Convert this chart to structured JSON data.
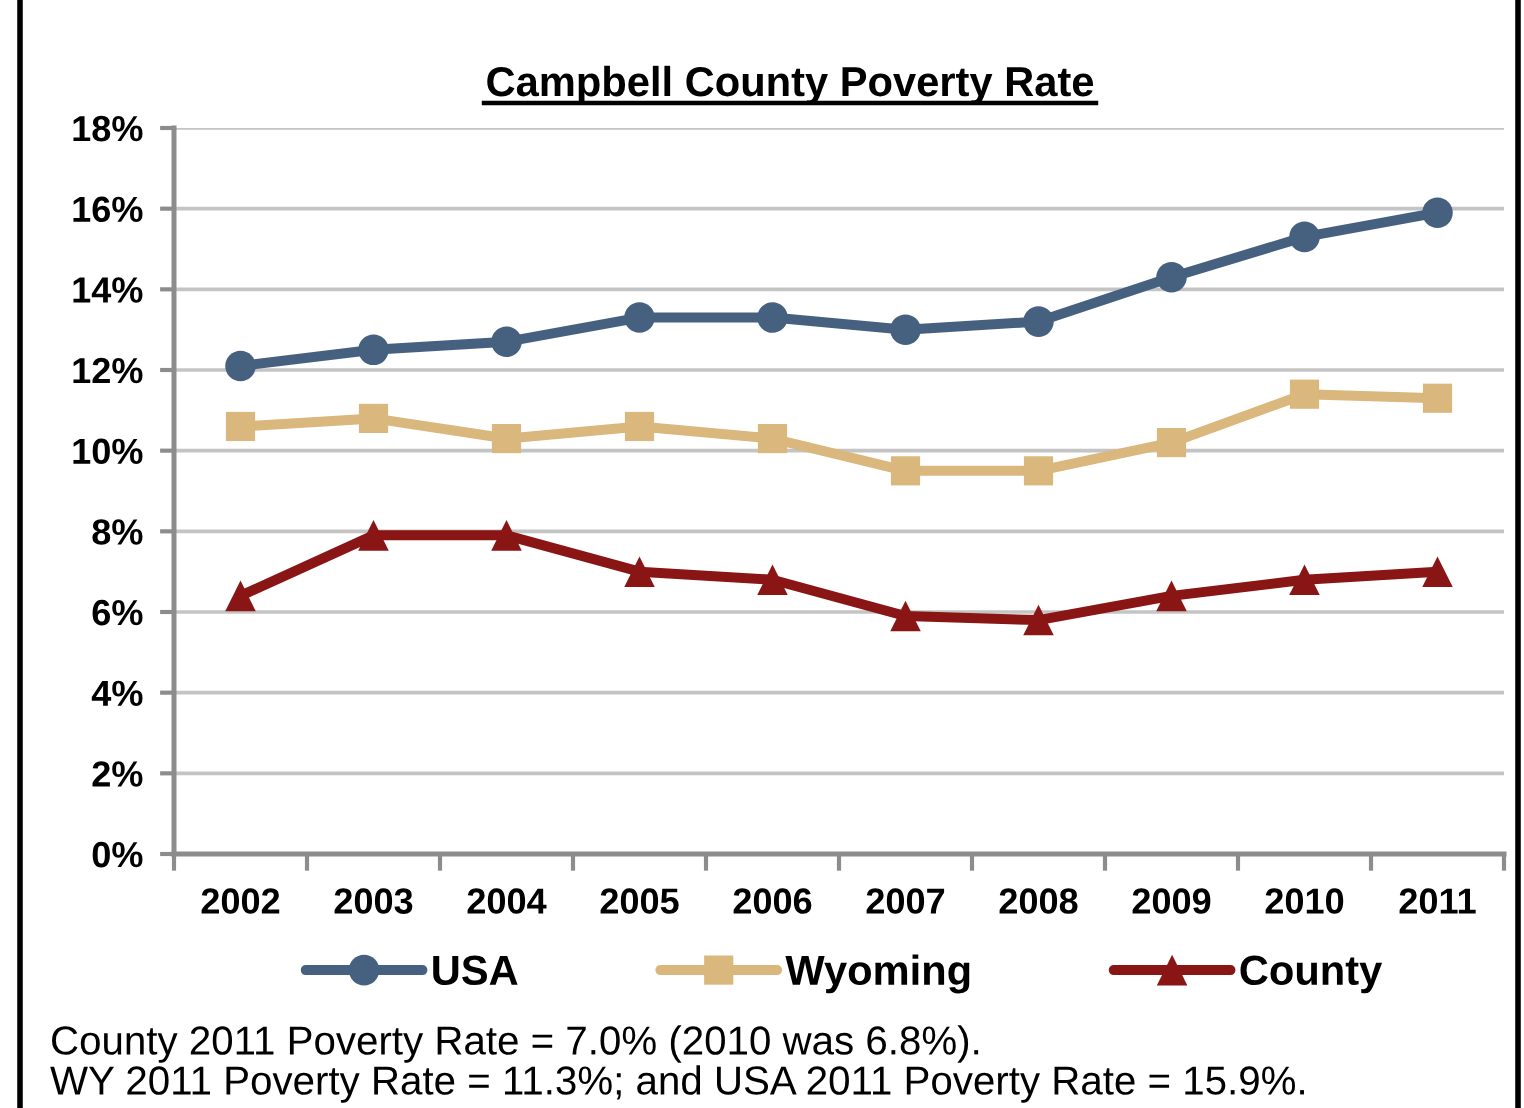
{
  "chart_data": {
    "type": "line",
    "title": "Campbell County Poverty Rate",
    "categories": [
      "2002",
      "2003",
      "2004",
      "2005",
      "2006",
      "2007",
      "2008",
      "2009",
      "2010",
      "2011"
    ],
    "series": [
      {
        "name": "USA",
        "color": "#46607f",
        "marker": "circle",
        "values": [
          12.1,
          12.5,
          12.7,
          13.3,
          13.3,
          13.0,
          13.2,
          14.3,
          15.3,
          15.9
        ]
      },
      {
        "name": "Wyoming",
        "color": "#dab77c",
        "marker": "square",
        "values": [
          10.6,
          10.8,
          10.3,
          10.6,
          10.3,
          9.5,
          9.5,
          10.2,
          11.4,
          11.3
        ]
      },
      {
        "name": "County",
        "color": "#8a1515",
        "marker": "triangle",
        "values": [
          6.4,
          7.9,
          7.9,
          7.0,
          6.8,
          5.9,
          5.8,
          6.4,
          6.8,
          7.0
        ]
      }
    ],
    "ylim": [
      0,
      18
    ],
    "yticks": [
      {
        "value": 0,
        "label": "0%"
      },
      {
        "value": 2,
        "label": "2%"
      },
      {
        "value": 4,
        "label": "4%"
      },
      {
        "value": 6,
        "label": "6%"
      },
      {
        "value": 8,
        "label": "8%"
      },
      {
        "value": 10,
        "label": "10%"
      },
      {
        "value": 12,
        "label": "12%"
      },
      {
        "value": 14,
        "label": "14%"
      },
      {
        "value": 16,
        "label": "16%"
      },
      {
        "value": 18,
        "label": "18%"
      }
    ],
    "grid": "y",
    "legend": "bottom",
    "line_style": "solid",
    "annotations": [
      "County 2011 Poverty Rate = 7.0% (2010 was 6.8%).",
      "WY 2011 Poverty Rate = 11.3%; and USA 2011 Poverty Rate = 15.9%."
    ]
  }
}
